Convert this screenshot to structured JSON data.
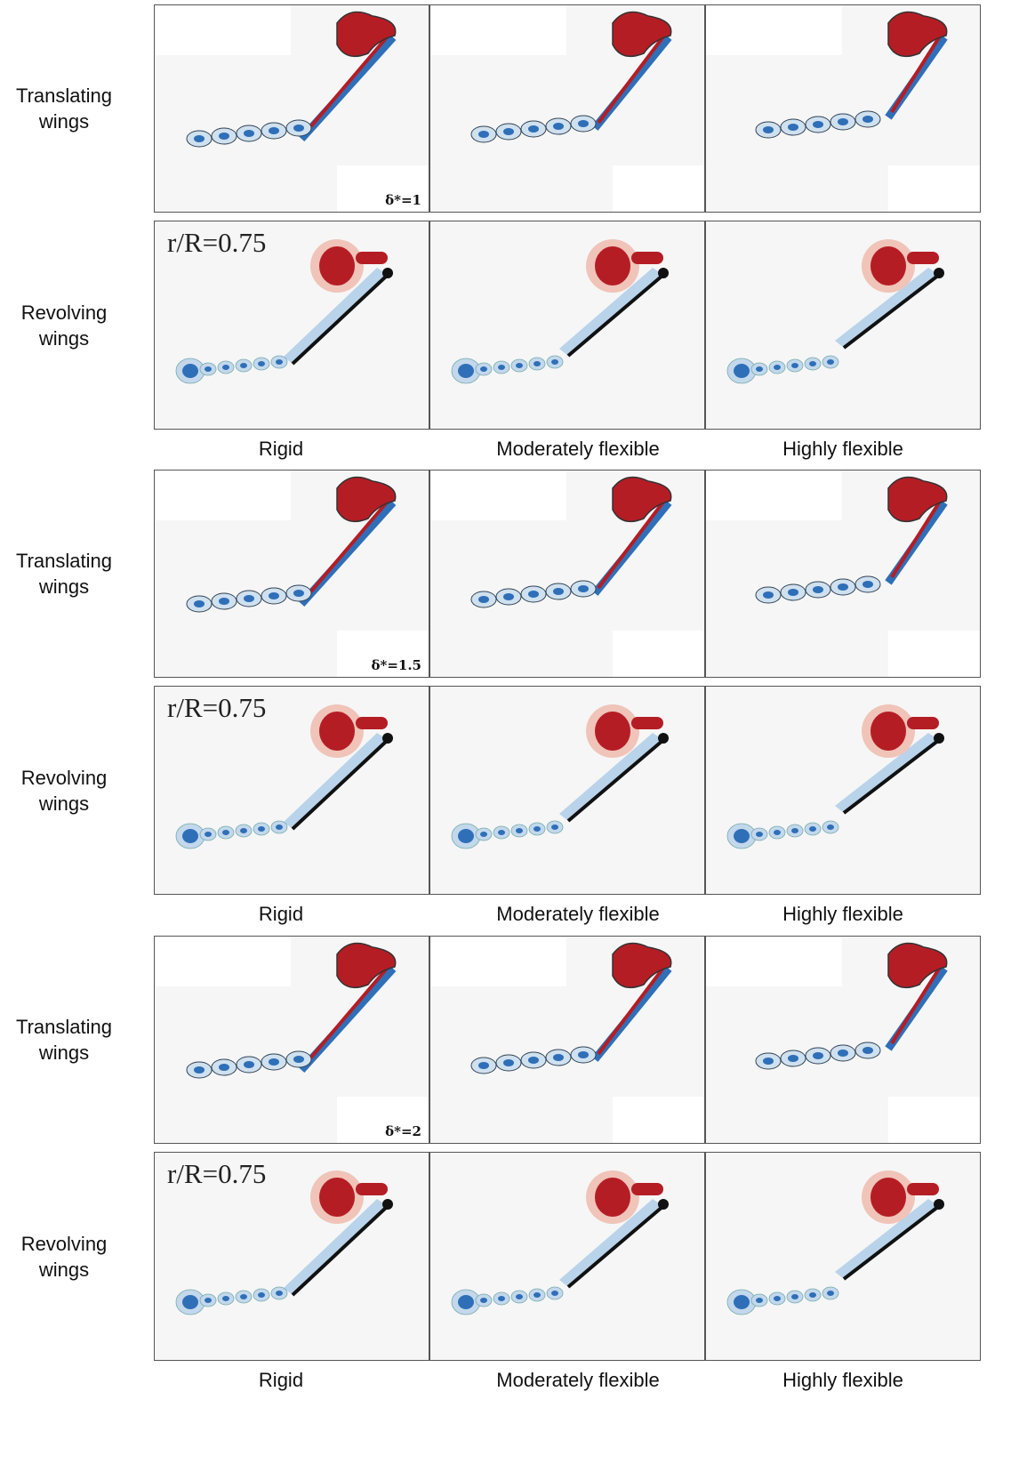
{
  "groups": [
    {
      "rows": [
        {
          "label": "Translating wings",
          "annotation": "δ*=1"
        },
        {
          "label": "Revolving wings",
          "annotation": "r/R=0.75"
        }
      ],
      "columns": [
        "Rigid",
        "Moderately flexible",
        "Highly flexible"
      ]
    },
    {
      "rows": [
        {
          "label": "Translating wings",
          "annotation": "δ*=1.5"
        },
        {
          "label": "Revolving wings",
          "annotation": "r/R=0.75"
        }
      ],
      "columns": [
        "Rigid",
        "Moderately flexible",
        "Highly flexible"
      ]
    },
    {
      "rows": [
        {
          "label": "Translating wings",
          "annotation": "δ*=2"
        },
        {
          "label": "Revolving wings",
          "annotation": "r/R=0.75"
        }
      ],
      "columns": [
        "Rigid",
        "Moderately flexible",
        "Highly flexible"
      ]
    }
  ]
}
